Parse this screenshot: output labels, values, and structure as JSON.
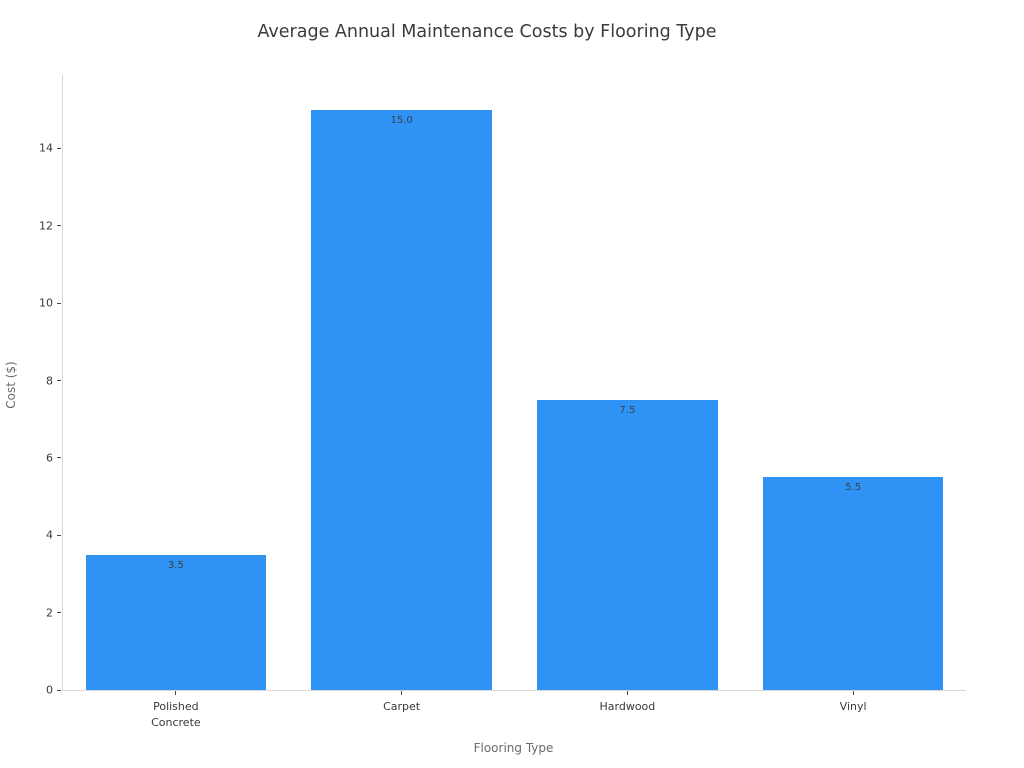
{
  "chart_data": {
    "type": "bar",
    "title": "Average Annual Maintenance Costs by Flooring Type",
    "xlabel": "Flooring Type",
    "ylabel": "Cost ($)",
    "categories": [
      "Polished\nConcrete",
      "Carpet",
      "Hardwood",
      "Vinyl"
    ],
    "values": [
      3.5,
      15.0,
      7.5,
      5.5
    ],
    "bar_labels": [
      "3.5",
      "15.0",
      "7.5",
      "5.5"
    ],
    "yticks": [
      0,
      2,
      4,
      6,
      8,
      10,
      12,
      14
    ],
    "ylim": [
      0,
      15.9
    ],
    "bar_width_fraction": 0.8,
    "grid": false,
    "legend_position": "none",
    "colors": {
      "bar_fill": "#2e93f5",
      "title_text": "#3b3b3b",
      "tick_label_text": "#3a3a3a",
      "bar_value_text": "#3d4147",
      "axis_label_text": "#6b6b6b",
      "spine": "#d9d9d9",
      "tick_mark": "#4a4a4a",
      "background": "#ffffff"
    }
  }
}
